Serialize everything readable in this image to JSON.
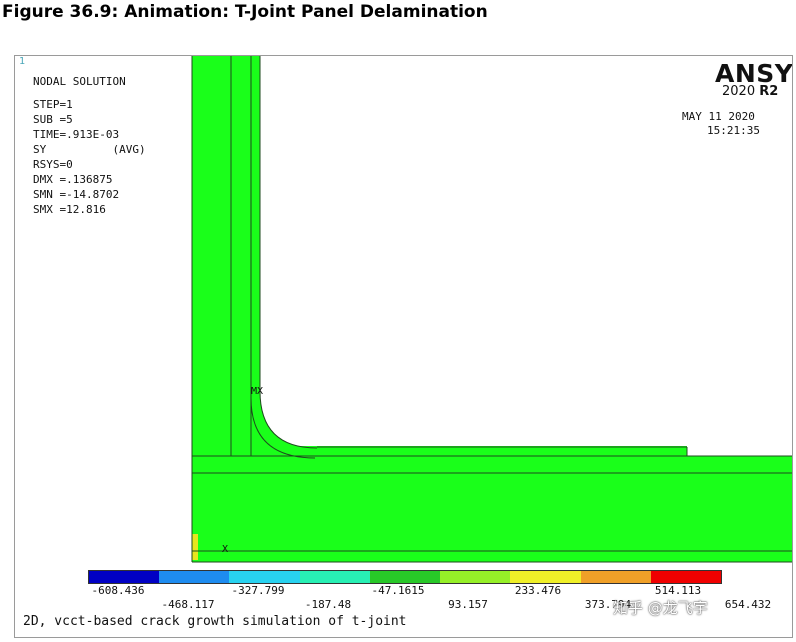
{
  "figure_title": "Figure 36.9: Animation: T-Joint Panel Delamination",
  "window_number": "1",
  "info_lines": [
    "NODAL SOLUTION",
    "STEP=1",
    "SUB =5",
    "TIME=.913E-03",
    "SY          (AVG)",
    "RSYS=0",
    "DMX =.136875",
    "SMN =-14.8702",
    "SMX =12.816"
  ],
  "logo": {
    "brand": "ANSYS",
    "year": "2020",
    "release": "R2"
  },
  "date": "MAY 11 2020",
  "time": "15:21:35",
  "markers": {
    "max": "MX",
    "min": "X"
  },
  "contour_colors": [
    "#0000c4",
    "#1e8cf0",
    "#28d2f0",
    "#28f0b4",
    "#28c828",
    "#96f028",
    "#f0f028",
    "#f0a028",
    "#f00000"
  ],
  "mesh_color": "#1aff1a",
  "min_region_color": "#e6e61e",
  "legend_labels_top": [
    "-608.436",
    "-327.799",
    "-47.1615",
    "233.476",
    "514.113"
  ],
  "legend_labels_bottom": [
    "-468.117",
    "-187.48",
    "93.157",
    "373.794",
    "654.432"
  ],
  "caption": "2D, vcct-based crack growth simulation of t-joint",
  "watermark": "知乎 @龙飞宇"
}
